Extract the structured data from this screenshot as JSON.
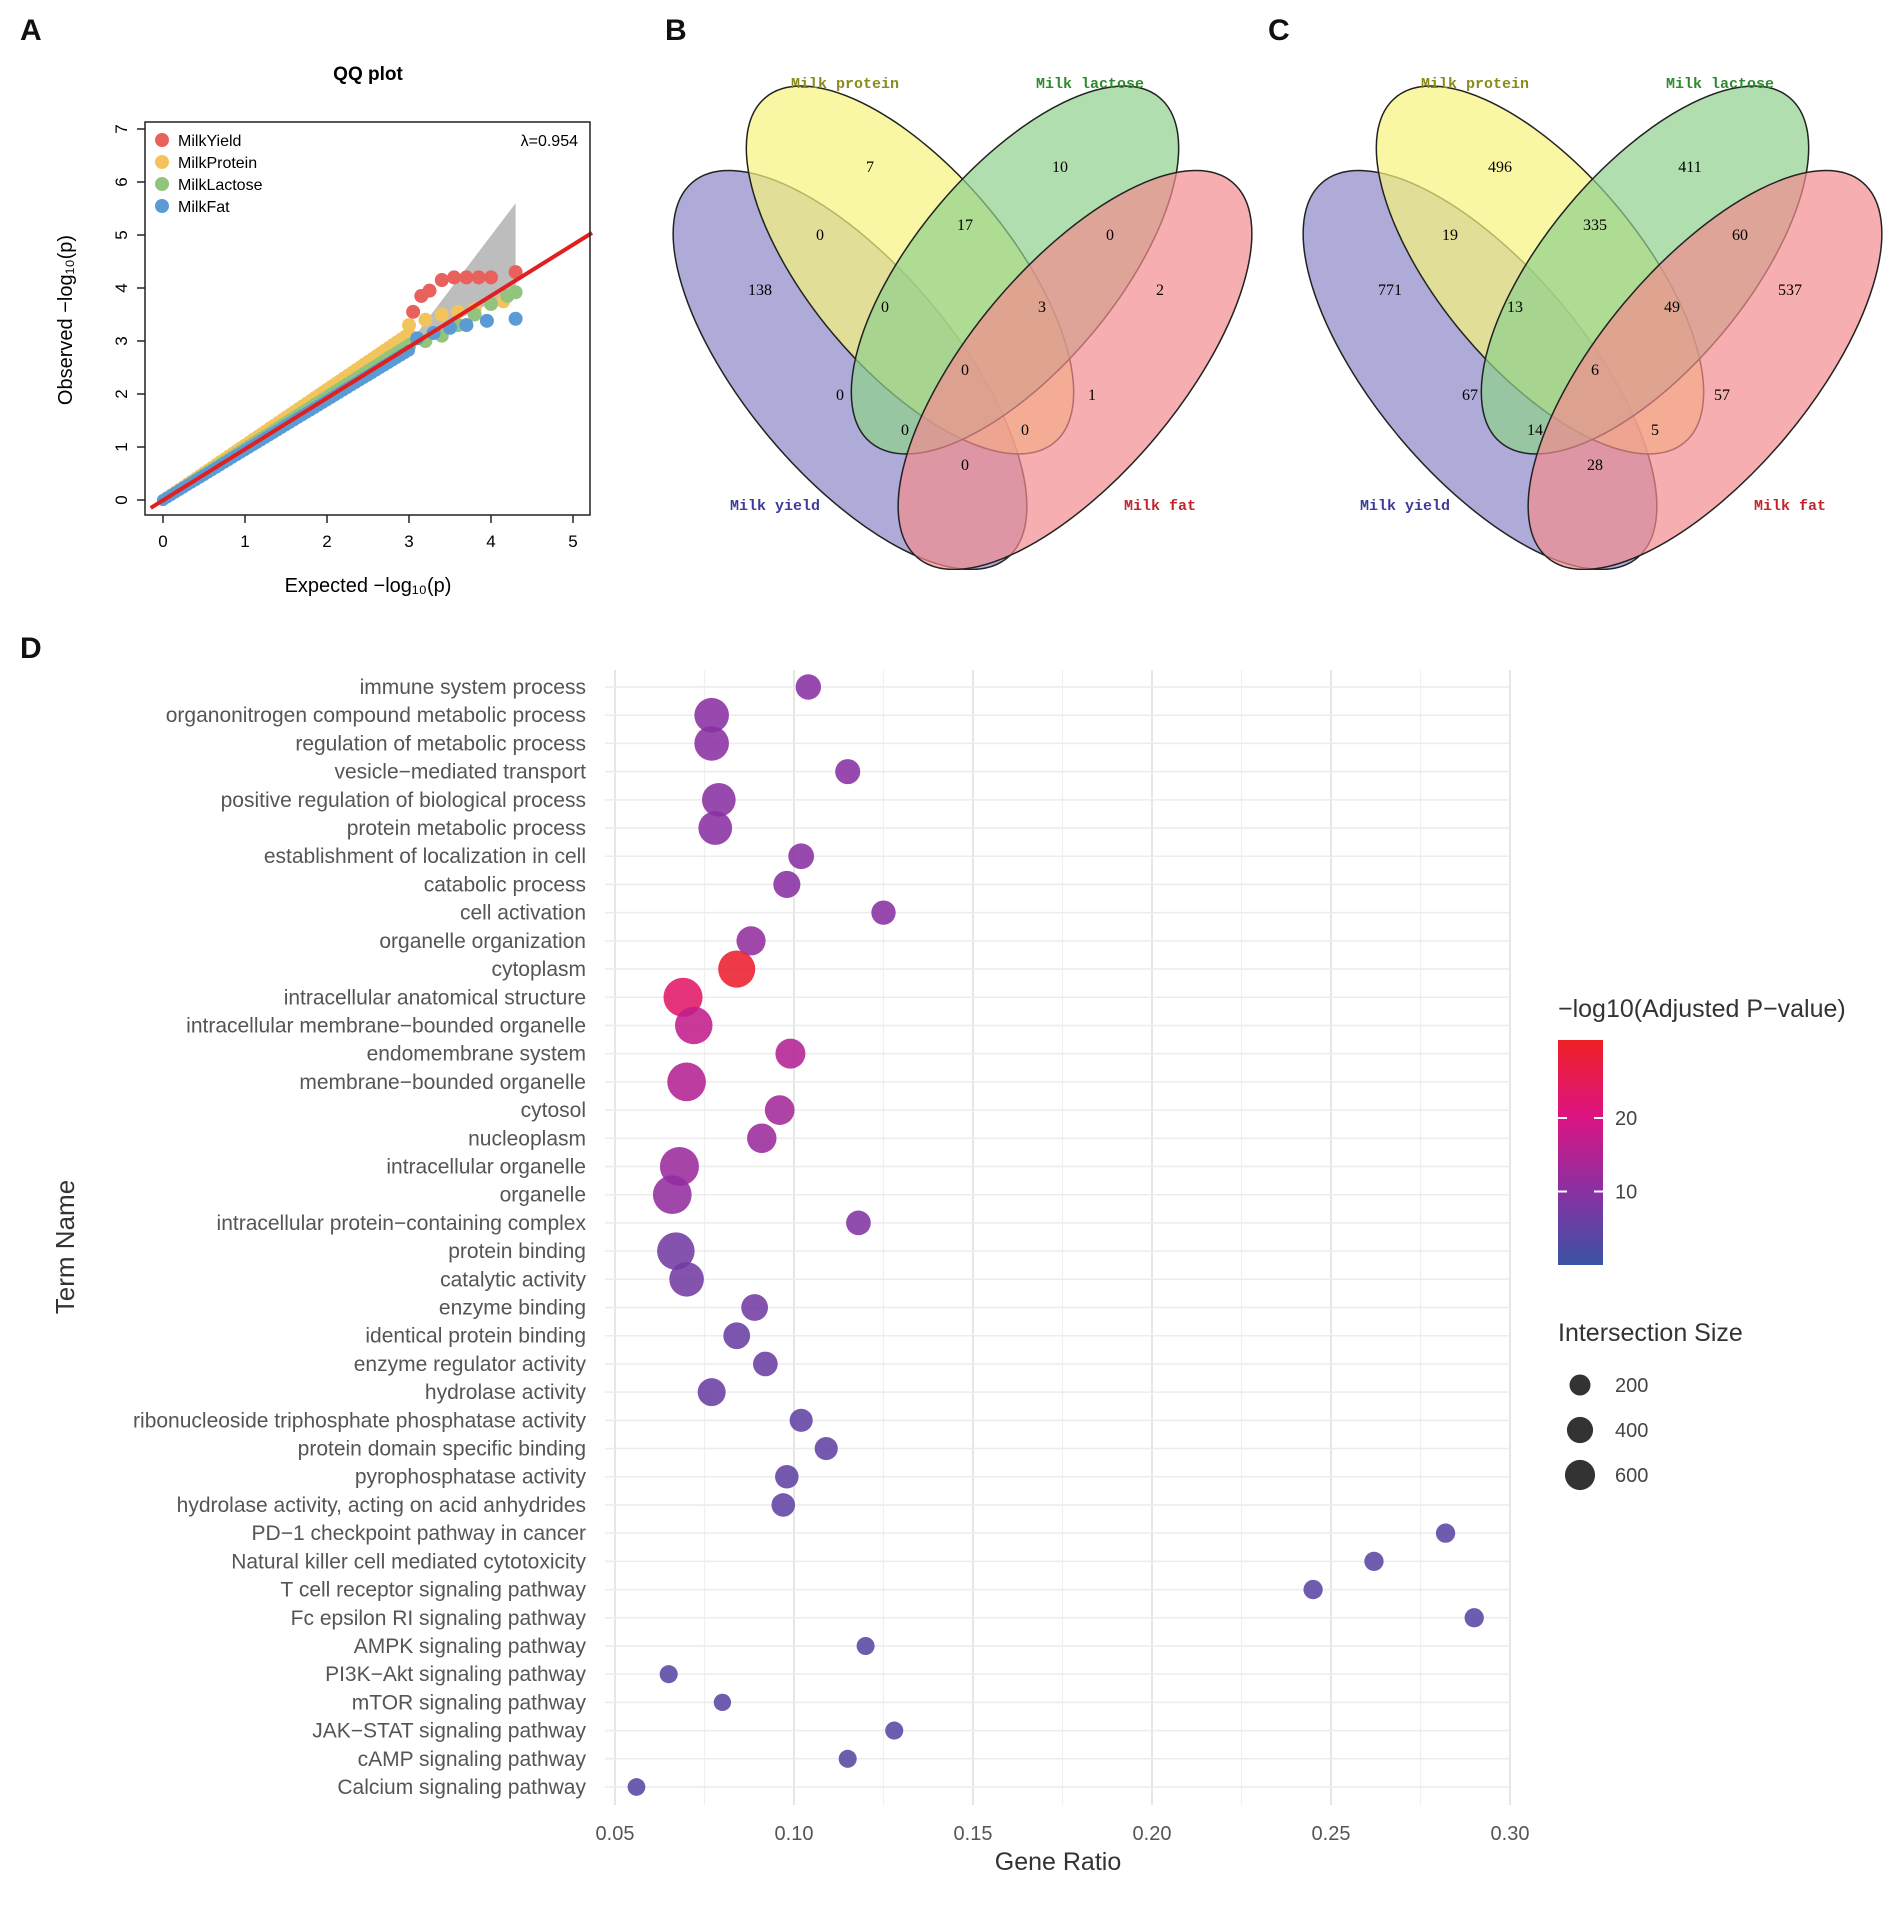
{
  "panels": {
    "a": "A",
    "b": "B",
    "c": "C",
    "d": "D"
  },
  "chart_data": [
    {
      "type": "scatter",
      "id": "qq",
      "title": "QQ plot",
      "xlabel": "Expected  −log₁₀(p)",
      "ylabel": "Observed  −log₁₀(p)",
      "xlim": [
        0,
        5
      ],
      "ylim": [
        0,
        7
      ],
      "xticks": [
        "0",
        "1",
        "2",
        "3",
        "4",
        "5"
      ],
      "yticks": [
        "0",
        "1",
        "2",
        "3",
        "4",
        "5",
        "6",
        "7"
      ],
      "lambda_label": "λ=0.954",
      "legend": "top-left",
      "series": [
        {
          "name": "MilkYield",
          "color": "#e8615c",
          "tail": [
            [
              3.05,
              3.55
            ],
            [
              3.15,
              3.85
            ],
            [
              3.25,
              3.95
            ],
            [
              3.4,
              4.15
            ],
            [
              3.55,
              4.2
            ],
            [
              3.7,
              4.2
            ],
            [
              3.85,
              4.2
            ],
            [
              4.0,
              4.2
            ],
            [
              4.3,
              4.3
            ]
          ]
        },
        {
          "name": "MilkProtein",
          "color": "#f4c45c",
          "tail": [
            [
              3.0,
              3.3
            ],
            [
              3.2,
              3.4
            ],
            [
              3.4,
              3.5
            ],
            [
              3.6,
              3.55
            ],
            [
              3.8,
              3.6
            ],
            [
              4.0,
              3.7
            ],
            [
              4.15,
              3.75
            ]
          ]
        },
        {
          "name": "MilkLactose",
          "color": "#92c47d",
          "tail": [
            [
              3.0,
              2.9
            ],
            [
              3.2,
              3.0
            ],
            [
              3.4,
              3.1
            ],
            [
              3.6,
              3.3
            ],
            [
              3.8,
              3.5
            ],
            [
              4.0,
              3.7
            ],
            [
              4.2,
              3.85
            ],
            [
              4.3,
              3.92
            ]
          ]
        },
        {
          "name": "MilkFat",
          "color": "#5b9bd5",
          "tail": [
            [
              3.1,
              3.05
            ],
            [
              3.3,
              3.15
            ],
            [
              3.5,
              3.25
            ],
            [
              3.7,
              3.3
            ],
            [
              3.95,
              3.38
            ],
            [
              4.3,
              3.42
            ]
          ]
        }
      ]
    },
    {
      "type": "venn",
      "id": "vennB",
      "sets": [
        {
          "name": "Milk protein",
          "color": "#f7f37e"
        },
        {
          "name": "Milk lactose",
          "color": "#8fd08c"
        },
        {
          "name": "Milk yield",
          "color": "#8c88c8"
        },
        {
          "name": "Milk fat",
          "color": "#f28b8e"
        }
      ],
      "counts": {
        "yield": "138",
        "protein": "7",
        "lactose": "10",
        "fat": "2",
        "yield_protein": "0",
        "protein_lactose": "17",
        "lactose_fat": "0",
        "yield_protein_lactose": "0",
        "protein_lactose_fat": "3",
        "yield_lactose": "0",
        "all4": "0",
        "protein_fat": "1",
        "yield_lactose_fat": "0",
        "yield_protein_fat": "0",
        "yield_fat": "0"
      }
    },
    {
      "type": "venn",
      "id": "vennC",
      "sets": [
        {
          "name": "Milk protein",
          "color": "#f7f37e"
        },
        {
          "name": "Milk lactose",
          "color": "#8fd08c"
        },
        {
          "name": "Milk yield",
          "color": "#8c88c8"
        },
        {
          "name": "Milk fat",
          "color": "#f28b8e"
        }
      ],
      "counts": {
        "yield": "771",
        "protein": "496",
        "lactose": "411",
        "fat": "537",
        "yield_protein": "19",
        "protein_lactose": "335",
        "lactose_fat": "60",
        "yield_protein_lactose": "13",
        "protein_lactose_fat": "49",
        "yield_lactose": "67",
        "all4": "6",
        "protein_fat": "57",
        "yield_lactose_fat": "14",
        "yield_protein_fat": "5",
        "yield_fat": "28"
      }
    },
    {
      "type": "scatter",
      "id": "dotplot",
      "xlabel": "Gene Ratio",
      "ylabel": "Term Name",
      "xlim": [
        0.05,
        0.3
      ],
      "xticks": [
        0.05,
        0.1,
        0.15,
        0.2,
        0.25,
        0.3
      ],
      "xtick_labels": [
        "0.05",
        "0.10",
        "0.15",
        "0.20",
        "0.25",
        "0.30"
      ],
      "color_legend": {
        "title": "−log10(Adjusted P−value)",
        "ticks": [
          "20",
          "10"
        ],
        "tick_values": [
          20,
          10
        ],
        "range": [
          0,
          30
        ]
      },
      "size_legend": {
        "title": "Intersection Size",
        "labels": [
          "200",
          "400",
          "600"
        ],
        "values": [
          200,
          400,
          600
        ]
      },
      "terms": [
        {
          "term": "immune system process",
          "ratio": 0.104,
          "size": 220,
          "p": 10
        },
        {
          "term": "organonitrogen compound metabolic process",
          "ratio": 0.077,
          "size": 560,
          "p": 10
        },
        {
          "term": "regulation of metabolic process",
          "ratio": 0.077,
          "size": 560,
          "p": 10
        },
        {
          "term": "vesicle−mediated transport",
          "ratio": 0.115,
          "size": 210,
          "p": 10
        },
        {
          "term": "positive regulation of biological process",
          "ratio": 0.079,
          "size": 520,
          "p": 10
        },
        {
          "term": "protein metabolic process",
          "ratio": 0.078,
          "size": 520,
          "p": 10
        },
        {
          "term": "establishment of localization in cell",
          "ratio": 0.102,
          "size": 230,
          "p": 10
        },
        {
          "term": "catabolic process",
          "ratio": 0.098,
          "size": 270,
          "p": 10
        },
        {
          "term": "cell activation",
          "ratio": 0.125,
          "size": 190,
          "p": 10
        },
        {
          "term": "organelle organization",
          "ratio": 0.088,
          "size": 340,
          "p": 11
        },
        {
          "term": "cytoplasm",
          "ratio": 0.084,
          "size": 680,
          "p": 29
        },
        {
          "term": "intracellular anatomical structure",
          "ratio": 0.069,
          "size": 780,
          "p": 23
        },
        {
          "term": "intracellular membrane−bounded organelle",
          "ratio": 0.072,
          "size": 700,
          "p": 17
        },
        {
          "term": "endomembrane system",
          "ratio": 0.099,
          "size": 370,
          "p": 15
        },
        {
          "term": "membrane−bounded organelle",
          "ratio": 0.07,
          "size": 760,
          "p": 15
        },
        {
          "term": "cytosol",
          "ratio": 0.096,
          "size": 360,
          "p": 13
        },
        {
          "term": "nucleoplasm",
          "ratio": 0.091,
          "size": 350,
          "p": 12
        },
        {
          "term": "intracellular organelle",
          "ratio": 0.068,
          "size": 780,
          "p": 12
        },
        {
          "term": "organelle",
          "ratio": 0.066,
          "size": 760,
          "p": 11
        },
        {
          "term": "intracellular protein−containing complex",
          "ratio": 0.118,
          "size": 200,
          "p": 9
        },
        {
          "term": "protein binding",
          "ratio": 0.067,
          "size": 700,
          "p": 7
        },
        {
          "term": "catalytic activity",
          "ratio": 0.07,
          "size": 560,
          "p": 7
        },
        {
          "term": "enzyme binding",
          "ratio": 0.089,
          "size": 260,
          "p": 7
        },
        {
          "term": "identical protein binding",
          "ratio": 0.084,
          "size": 260,
          "p": 6
        },
        {
          "term": "enzyme regulator activity",
          "ratio": 0.092,
          "size": 200,
          "p": 6
        },
        {
          "term": "hydrolase activity",
          "ratio": 0.077,
          "size": 300,
          "p": 6
        },
        {
          "term": "ribonucleoside triphosphate phosphatase activity",
          "ratio": 0.102,
          "size": 160,
          "p": 5
        },
        {
          "term": "protein domain specific binding",
          "ratio": 0.109,
          "size": 160,
          "p": 5
        },
        {
          "term": "pyrophosphatase activity",
          "ratio": 0.098,
          "size": 170,
          "p": 5
        },
        {
          "term": "hydrolase activity, acting on acid anhydrides",
          "ratio": 0.097,
          "size": 170,
          "p": 5
        },
        {
          "term": "PD−1 checkpoint pathway in cancer",
          "ratio": 0.282,
          "size": 80,
          "p": 4
        },
        {
          "term": "Natural killer cell mediated cytotoxicity",
          "ratio": 0.262,
          "size": 80,
          "p": 4
        },
        {
          "term": "T cell receptor signaling pathway",
          "ratio": 0.245,
          "size": 80,
          "p": 4
        },
        {
          "term": "Fc epsilon RI signaling pathway",
          "ratio": 0.29,
          "size": 80,
          "p": 4
        },
        {
          "term": "AMPK signaling pathway",
          "ratio": 0.12,
          "size": 60,
          "p": 4
        },
        {
          "term": "PI3K−Akt signaling pathway",
          "ratio": 0.065,
          "size": 60,
          "p": 4
        },
        {
          "term": "mTOR signaling pathway",
          "ratio": 0.08,
          "size": 50,
          "p": 4
        },
        {
          "term": "JAK−STAT signaling pathway",
          "ratio": 0.128,
          "size": 60,
          "p": 4
        },
        {
          "term": "cAMP signaling pathway",
          "ratio": 0.115,
          "size": 60,
          "p": 4
        },
        {
          "term": "Calcium signaling pathway",
          "ratio": 0.056,
          "size": 55,
          "p": 4
        }
      ]
    }
  ]
}
